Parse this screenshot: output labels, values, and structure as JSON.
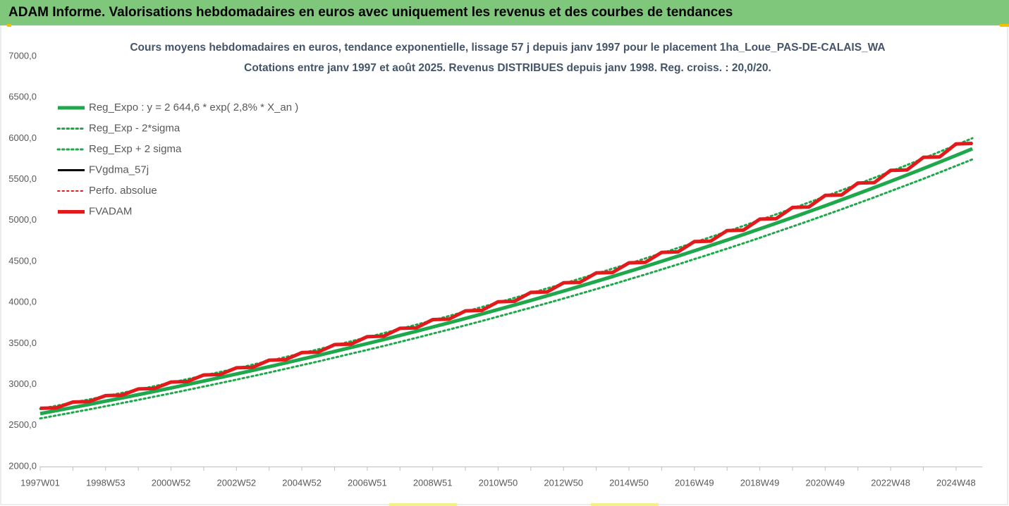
{
  "header": {
    "title": "ADAM Informe. Valorisations hebdomadaires en euros avec uniquement les revenus et des courbes de tendances"
  },
  "chart_data": {
    "type": "line",
    "title": "Cours moyens hebdomadaires en euros, tendance exponentielle, lissage 57 j depuis janv 1997 pour le placement 1ha_Loue_PAS-DE-CALAIS_WA",
    "subtitle": "Cotations entre janv 1997 et août 2025. Revenus DISTRIBUES depuis janv 1998. Reg. croiss. : 20,0/20.",
    "categories": [
      "1997W01",
      null,
      null,
      null,
      "1998W53",
      null,
      null,
      null,
      "2000W52",
      null,
      null,
      null,
      "2002W52",
      null,
      null,
      null,
      "2004W52",
      null,
      null,
      null,
      "2006W51",
      null,
      null,
      null,
      "2008W51",
      null,
      null,
      null,
      "2010W50",
      null,
      null,
      null,
      "2012W50",
      null,
      null,
      null,
      "2014W50",
      null,
      null,
      null,
      "2016W49",
      null,
      null,
      null,
      "2018W49",
      null,
      null,
      null,
      "2020W49",
      null,
      null,
      null,
      "2022W48",
      null,
      null,
      null,
      "2024W48",
      null
    ],
    "ylim": [
      2000,
      7000
    ],
    "yticks": [
      {
        "value": 2000,
        "label": "2000,0"
      },
      {
        "value": 2500,
        "label": "2500,0"
      },
      {
        "value": 3000,
        "label": "3000,0"
      },
      {
        "value": 3500,
        "label": "3500,0"
      },
      {
        "value": 4000,
        "label": "4000,0"
      },
      {
        "value": 4500,
        "label": "4500,0"
      },
      {
        "value": 5000,
        "label": "5000,0"
      },
      {
        "value": 5500,
        "label": "5500,0"
      },
      {
        "value": 6000,
        "label": "6000,0"
      },
      {
        "value": 6500,
        "label": "6500,0"
      },
      {
        "value": 7000,
        "label": "7000,0"
      }
    ],
    "grid": false,
    "legend": "top-left",
    "series": [
      {
        "name": "Reg_Expo : y = 2 644,6 * exp( 2,8% *  X_an )",
        "color": "#1fa84b",
        "line_style": "solid",
        "values": [
          2645,
          2682,
          2720,
          2758,
          2797,
          2836,
          2876,
          2917,
          2958,
          3000,
          3042,
          3085,
          3128,
          3172,
          3217,
          3263,
          3309,
          3355,
          3403,
          3451,
          3499,
          3548,
          3599,
          3649,
          3701,
          3753,
          3806,
          3859,
          3914,
          3969,
          4025,
          4082,
          4139,
          4198,
          4257,
          4317,
          4378,
          4439,
          4502,
          4565,
          4630,
          4695,
          4761,
          4828,
          4897,
          4966,
          5036,
          5107,
          5179,
          5252,
          5326,
          5401,
          5477,
          5554,
          5632,
          5712,
          5792,
          5874
        ]
      },
      {
        "name": "Reg_Exp - 2*sigma",
        "color": "#1fa84b",
        "line_style": "dotted",
        "values": [
          2587,
          2623,
          2660,
          2697,
          2735,
          2774,
          2813,
          2853,
          2893,
          2934,
          2975,
          3017,
          3059,
          3102,
          3146,
          3191,
          3236,
          3281,
          3328,
          3375,
          3422,
          3470,
          3520,
          3569,
          3620,
          3670,
          3722,
          3774,
          3828,
          3882,
          3936,
          3992,
          4048,
          4106,
          4163,
          4222,
          4282,
          4341,
          4403,
          4465,
          4528,
          4592,
          4656,
          4722,
          4789,
          4857,
          4925,
          4995,
          5065,
          5136,
          5209,
          5282,
          5357,
          5432,
          5508,
          5586,
          5665,
          5745
        ]
      },
      {
        "name": "Reg_Exp + 2 sigma",
        "color": "#1fa84b",
        "line_style": "dotted",
        "values": [
          2703,
          2741,
          2780,
          2819,
          2859,
          2898,
          2939,
          2981,
          3023,
          3066,
          3109,
          3153,
          3197,
          3242,
          3288,
          3335,
          3382,
          3429,
          3478,
          3527,
          3576,
          3626,
          3678,
          3729,
          3782,
          3836,
          3890,
          3944,
          4000,
          4056,
          4114,
          4172,
          4230,
          4290,
          4351,
          4412,
          4474,
          4537,
          4601,
          4665,
          4732,
          4798,
          4866,
          4934,
          5005,
          5075,
          5147,
          5219,
          5293,
          5368,
          5443,
          5520,
          5597,
          5676,
          5756,
          5838,
          5919,
          6003
        ]
      },
      {
        "name": "FVgdma_57j",
        "color": "#000000",
        "line_style": "solid",
        "values": [
          2706,
          2720,
          2782,
          2796,
          2860,
          2874,
          2942,
          2956,
          3026,
          3040,
          3112,
          3126,
          3200,
          3214,
          3292,
          3306,
          3385,
          3399,
          3482,
          3496,
          3579,
          3593,
          3681,
          3695,
          3787,
          3801,
          3894,
          3908,
          4005,
          4019,
          4119,
          4133,
          4236,
          4250,
          4356,
          4370,
          4479,
          4493,
          4607,
          4621,
          4738,
          4752,
          4872,
          4886,
          5012,
          5026,
          5154,
          5168,
          5301,
          5315,
          5451,
          5465,
          5606,
          5620,
          5765,
          5779,
          5929,
          5943
        ]
      },
      {
        "name": "Perfo. absolue",
        "color": "#e31a1c",
        "line_style": "dotted",
        "values": [
          2712,
          2718,
          2788,
          2794,
          2866,
          2872,
          2948,
          2954,
          3032,
          3038,
          3118,
          3124,
          3206,
          3212,
          3298,
          3304,
          3391,
          3397,
          3488,
          3494,
          3585,
          3591,
          3687,
          3693,
          3793,
          3799,
          3900,
          3906,
          4011,
          4017,
          4125,
          4131,
          4242,
          4248,
          4362,
          4368,
          4485,
          4491,
          4613,
          4619,
          4744,
          4750,
          4878,
          4884,
          5018,
          5024,
          5160,
          5166,
          5307,
          5313,
          5457,
          5463,
          5612,
          5618,
          5771,
          5777,
          5935,
          5941
        ]
      },
      {
        "name": "FVADAM",
        "color": "#e31a1c",
        "line_style": "solid",
        "values": [
          2710,
          2716,
          2786,
          2792,
          2864,
          2870,
          2946,
          2952,
          3030,
          3036,
          3116,
          3122,
          3204,
          3210,
          3296,
          3302,
          3389,
          3395,
          3486,
          3492,
          3583,
          3589,
          3685,
          3691,
          3791,
          3797,
          3898,
          3904,
          4009,
          4015,
          4123,
          4129,
          4240,
          4246,
          4360,
          4366,
          4483,
          4489,
          4611,
          4617,
          4742,
          4748,
          4876,
          4882,
          5016,
          5022,
          5158,
          5164,
          5305,
          5311,
          5455,
          5461,
          5610,
          5616,
          5769,
          5775,
          5933,
          5939
        ]
      }
    ]
  }
}
